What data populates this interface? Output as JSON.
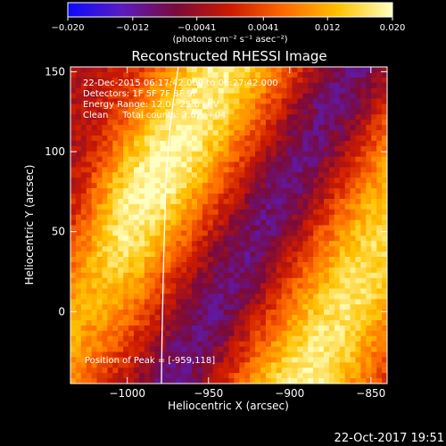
{
  "chart_data": {
    "type": "heatmap",
    "title": "Reconstructed RHESSI Image",
    "xlabel": "Heliocentric X (arcsec)",
    "ylabel": "Heliocentric Y (arcsec)",
    "xlim": [
      -1035,
      -840
    ],
    "ylim": [
      -45,
      153
    ],
    "xticks": [
      -1000,
      -950,
      -900,
      -850
    ],
    "xtick_labels": [
      "−1000",
      "−950",
      "−900",
      "−850"
    ],
    "yticks": [
      0,
      50,
      100,
      150
    ],
    "ytick_labels": [
      "0",
      "50",
      "100",
      "150"
    ],
    "grid": false,
    "colorbar": {
      "range": [
        -0.02,
        0.02
      ],
      "ticks": [
        -0.02,
        -0.012,
        -0.0041,
        0.0041,
        0.012,
        0.02
      ],
      "tick_labels": [
        "−0.020",
        "−0.012",
        "−0.0041",
        "0.0041",
        "0.012",
        "0.020"
      ],
      "label": "(photons cm⁻² s⁻¹ asec⁻²)",
      "colors": [
        "#0a0aff",
        "#5a1cc0",
        "#7a0a3a",
        "#cc1a00",
        "#ff6a00",
        "#ffc200",
        "#ffffc0"
      ],
      "position": "top"
    },
    "annotations": [
      "22-Dec-2015 06:17:42.000 to 06:27:42.000",
      "Detectors: 1F 5F 7F 8F 9F",
      "Energy Range: 12.0 - 25.0 keV",
      "Clean     Total counts: 3.62e+04"
    ],
    "peak_label": "Position of Peak = [-959,118]",
    "peak": [
      -959,
      118
    ],
    "limb_color": "#ffffff"
  },
  "footer": {
    "timestamp": "22-Oct-2017 19:51"
  }
}
